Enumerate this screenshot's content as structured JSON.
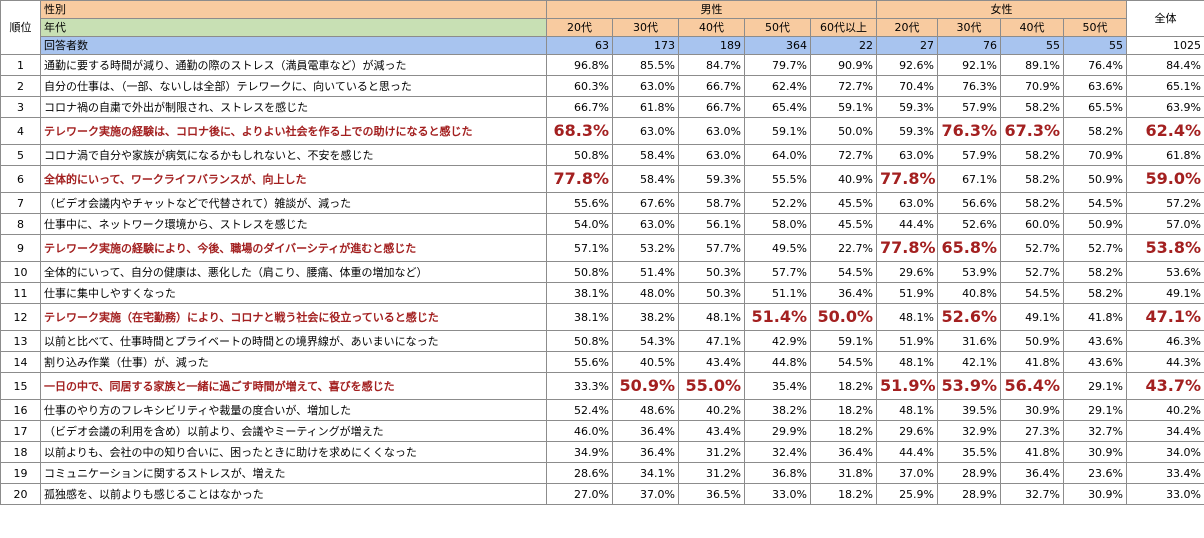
{
  "chart_data": {
    "type": "table",
    "header": {
      "rank_label": "順位",
      "gender_label": "性別",
      "age_label": "年代",
      "respondents_label": "回答者数",
      "male_label": "男性",
      "female_label": "女性",
      "total_label": "全体",
      "columns": [
        "20代",
        "30代",
        "40代",
        "50代",
        "60代以上",
        "20代",
        "30代",
        "40代",
        "50代",
        "全体"
      ]
    },
    "respondents": [
      "63",
      "173",
      "189",
      "364",
      "22",
      "27",
      "76",
      "55",
      "55",
      "1025"
    ],
    "rows": [
      {
        "rank": "1",
        "text": "通勤に要する時間が減り、通勤の際のストレス（満員電車など）が減った",
        "hl": false,
        "values": [
          "96.8%",
          "85.5%",
          "84.7%",
          "79.7%",
          "90.9%",
          "92.6%",
          "92.1%",
          "89.1%",
          "76.4%",
          "84.4%"
        ],
        "big": []
      },
      {
        "rank": "2",
        "text": "自分の仕事は、（一部、ないしは全部）テレワークに、向いていると思った",
        "hl": false,
        "values": [
          "60.3%",
          "63.0%",
          "66.7%",
          "62.4%",
          "72.7%",
          "70.4%",
          "76.3%",
          "70.9%",
          "63.6%",
          "65.1%"
        ],
        "big": []
      },
      {
        "rank": "3",
        "text": "コロナ禍の自粛で外出が制限され、ストレスを感じた",
        "hl": false,
        "values": [
          "66.7%",
          "61.8%",
          "66.7%",
          "65.4%",
          "59.1%",
          "59.3%",
          "57.9%",
          "58.2%",
          "65.5%",
          "63.9%"
        ],
        "big": []
      },
      {
        "rank": "4",
        "text": "テレワーク実施の経験は、コロナ後に、よりよい社会を作る上での助けになると感じた",
        "hl": true,
        "values": [
          "68.3%",
          "63.0%",
          "63.0%",
          "59.1%",
          "50.0%",
          "59.3%",
          "76.3%",
          "67.3%",
          "58.2%",
          "62.4%"
        ],
        "big": [
          0,
          6,
          7,
          9
        ]
      },
      {
        "rank": "5",
        "text": "コロナ渦で自分や家族が病気になるかもしれないと、不安を感じた",
        "hl": false,
        "values": [
          "50.8%",
          "58.4%",
          "63.0%",
          "64.0%",
          "72.7%",
          "63.0%",
          "57.9%",
          "58.2%",
          "70.9%",
          "61.8%"
        ],
        "big": []
      },
      {
        "rank": "6",
        "text": "全体的にいって、ワークライフバランスが、向上した",
        "hl": true,
        "values": [
          "77.8%",
          "58.4%",
          "59.3%",
          "55.5%",
          "40.9%",
          "77.8%",
          "67.1%",
          "58.2%",
          "50.9%",
          "59.0%"
        ],
        "big": [
          0,
          5,
          9
        ]
      },
      {
        "rank": "7",
        "text": "（ビデオ会議内やチャットなどで代替されて）雑談が、減った",
        "hl": false,
        "values": [
          "55.6%",
          "67.6%",
          "58.7%",
          "52.2%",
          "45.5%",
          "63.0%",
          "56.6%",
          "58.2%",
          "54.5%",
          "57.2%"
        ],
        "big": []
      },
      {
        "rank": "8",
        "text": "仕事中に、ネットワーク環境から、ストレスを感じた",
        "hl": false,
        "values": [
          "54.0%",
          "63.0%",
          "56.1%",
          "58.0%",
          "45.5%",
          "44.4%",
          "52.6%",
          "60.0%",
          "50.9%",
          "57.0%"
        ],
        "big": []
      },
      {
        "rank": "9",
        "text": "テレワーク実施の経験により、今後、職場のダイバーシティが進むと感じた",
        "hl": true,
        "values": [
          "57.1%",
          "53.2%",
          "57.7%",
          "49.5%",
          "22.7%",
          "77.8%",
          "65.8%",
          "52.7%",
          "52.7%",
          "53.8%"
        ],
        "big": [
          5,
          6,
          9
        ]
      },
      {
        "rank": "10",
        "text": "全体的にいって、自分の健康は、悪化した（肩こり、腰痛、体重の増加など）",
        "hl": false,
        "values": [
          "50.8%",
          "51.4%",
          "50.3%",
          "57.7%",
          "54.5%",
          "29.6%",
          "53.9%",
          "52.7%",
          "58.2%",
          "53.6%"
        ],
        "big": []
      },
      {
        "rank": "11",
        "text": "仕事に集中しやすくなった",
        "hl": false,
        "values": [
          "38.1%",
          "48.0%",
          "50.3%",
          "51.1%",
          "36.4%",
          "51.9%",
          "40.8%",
          "54.5%",
          "58.2%",
          "49.1%"
        ],
        "big": []
      },
      {
        "rank": "12",
        "text": "テレワーク実施（在宅勤務）により、コロナと戦う社会に役立っていると感じた",
        "hl": true,
        "values": [
          "38.1%",
          "38.2%",
          "48.1%",
          "51.4%",
          "50.0%",
          "48.1%",
          "52.6%",
          "49.1%",
          "41.8%",
          "47.1%"
        ],
        "big": [
          3,
          4,
          6,
          9
        ]
      },
      {
        "rank": "13",
        "text": "以前と比べて、仕事時間とプライベートの時間との境界線が、あいまいになった",
        "hl": false,
        "values": [
          "50.8%",
          "54.3%",
          "47.1%",
          "42.9%",
          "59.1%",
          "51.9%",
          "31.6%",
          "50.9%",
          "43.6%",
          "46.3%"
        ],
        "big": []
      },
      {
        "rank": "14",
        "text": "割り込み作業（仕事）が、減った",
        "hl": false,
        "values": [
          "55.6%",
          "40.5%",
          "43.4%",
          "44.8%",
          "54.5%",
          "48.1%",
          "42.1%",
          "41.8%",
          "43.6%",
          "44.3%"
        ],
        "big": []
      },
      {
        "rank": "15",
        "text": "一日の中で、同居する家族と一緒に過ごす時間が増えて、喜びを感じた",
        "hl": true,
        "values": [
          "33.3%",
          "50.9%",
          "55.0%",
          "35.4%",
          "18.2%",
          "51.9%",
          "53.9%",
          "56.4%",
          "29.1%",
          "43.7%"
        ],
        "big": [
          1,
          2,
          5,
          6,
          7,
          9
        ]
      },
      {
        "rank": "16",
        "text": "仕事のやり方のフレキシビリティや裁量の度合いが、増加した",
        "hl": false,
        "values": [
          "52.4%",
          "48.6%",
          "40.2%",
          "38.2%",
          "18.2%",
          "48.1%",
          "39.5%",
          "30.9%",
          "29.1%",
          "40.2%"
        ],
        "big": []
      },
      {
        "rank": "17",
        "text": "（ビデオ会議の利用を含め）以前より、会議やミーティングが増えた",
        "hl": false,
        "values": [
          "46.0%",
          "36.4%",
          "43.4%",
          "29.9%",
          "18.2%",
          "29.6%",
          "32.9%",
          "27.3%",
          "32.7%",
          "34.4%"
        ],
        "big": []
      },
      {
        "rank": "18",
        "text": "以前よりも、会社の中の知り合いに、困ったときに助けを求めにくくなった",
        "hl": false,
        "values": [
          "34.9%",
          "36.4%",
          "31.2%",
          "32.4%",
          "36.4%",
          "44.4%",
          "35.5%",
          "41.8%",
          "30.9%",
          "34.0%"
        ],
        "big": []
      },
      {
        "rank": "19",
        "text": "コミュニケーションに関するストレスが、増えた",
        "hl": false,
        "values": [
          "28.6%",
          "34.1%",
          "31.2%",
          "36.8%",
          "31.8%",
          "37.0%",
          "28.9%",
          "36.4%",
          "23.6%",
          "33.4%"
        ],
        "big": []
      },
      {
        "rank": "20",
        "text": "孤独感を、以前よりも感じることはなかった",
        "hl": false,
        "values": [
          "27.0%",
          "37.0%",
          "36.5%",
          "33.0%",
          "18.2%",
          "25.9%",
          "28.9%",
          "32.7%",
          "30.9%",
          "33.0%"
        ],
        "big": []
      }
    ]
  }
}
